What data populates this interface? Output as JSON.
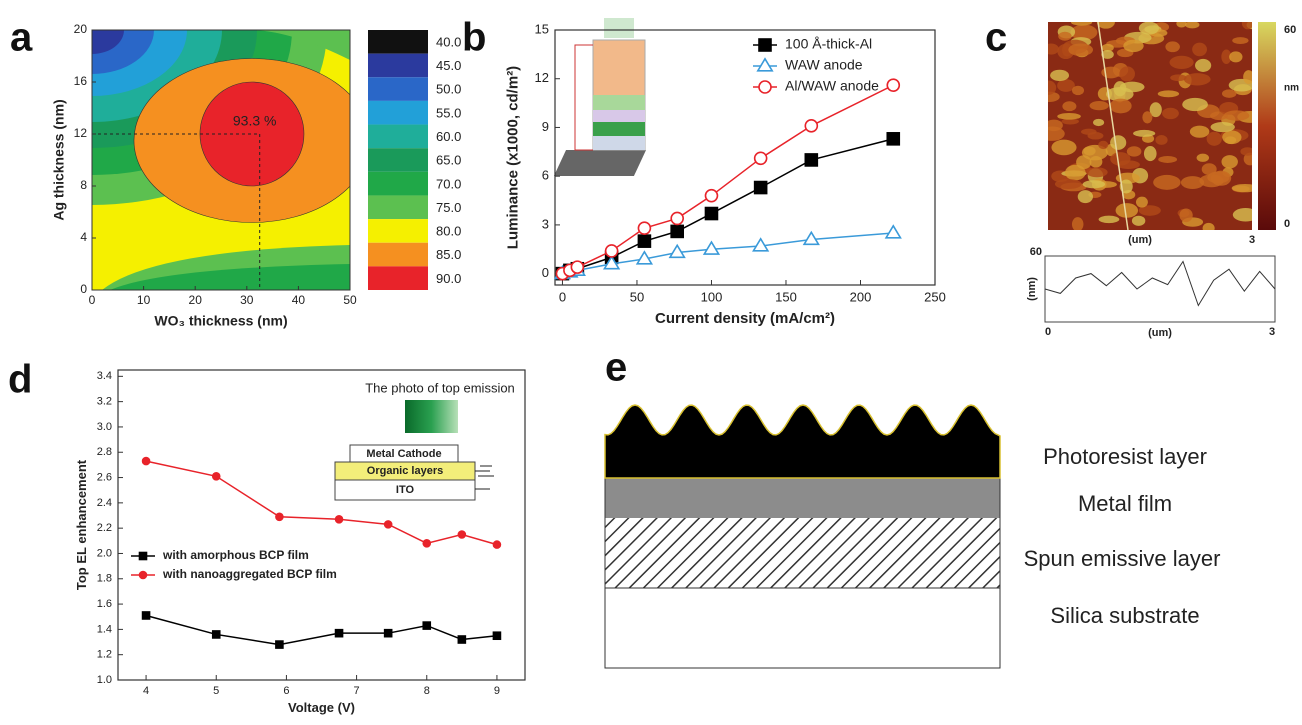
{
  "chart_data": [
    {
      "type": "contour",
      "label": "a",
      "x_label": "WO₃ thickness (nm)",
      "y_label": "Ag thickness (nm)",
      "xlim": [
        0,
        50
      ],
      "xticks": [
        0,
        10,
        20,
        30,
        40,
        50
      ],
      "ylim": [
        0,
        20
      ],
      "yticks": [
        0,
        4,
        8,
        12,
        16,
        20
      ],
      "annotation": "93.3 %",
      "peak_x": 32.5,
      "peak_y": 12,
      "colorbar": {
        "ticks": [
          {
            "value": 40,
            "label": "40.0"
          },
          {
            "value": 45,
            "label": "45.0"
          },
          {
            "value": 50,
            "label": "50.0"
          },
          {
            "value": 55,
            "label": "55.0"
          },
          {
            "value": 60,
            "label": "60.0"
          },
          {
            "value": 65,
            "label": "65.0"
          },
          {
            "value": 70,
            "label": "70.0"
          },
          {
            "value": 75,
            "label": "75.0"
          },
          {
            "value": 80,
            "label": "80.0"
          },
          {
            "value": 85,
            "label": "85.0"
          },
          {
            "value": 90,
            "label": "90.0"
          }
        ],
        "colors": [
          "#111111",
          "#2b3a9e",
          "#2a67c8",
          "#22a0d8",
          "#1fae9a",
          "#1a9a5a",
          "#20a848",
          "#5cc050",
          "#f5f000",
          "#f59020",
          "#e8232a"
        ]
      }
    },
    {
      "type": "line",
      "label": "b",
      "x_label": "Current density (mA/cm²)",
      "y_label": "Luminance (x1000, cd/m²)",
      "xlim": [
        -5,
        250
      ],
      "xticks": [
        0,
        50,
        100,
        150,
        200,
        250
      ],
      "ylim": [
        -0.7,
        15
      ],
      "yticks": [
        0,
        3,
        6,
        9,
        12,
        15
      ],
      "legend": "upper right",
      "x": [
        0,
        5,
        10,
        33,
        55,
        77,
        100,
        133,
        167,
        222
      ],
      "series": [
        {
          "name": "100 Å-thick-Al",
          "color": "#000000",
          "marker": "square",
          "filled": true,
          "values": [
            0,
            0.2,
            0.3,
            1.0,
            2.0,
            2.6,
            3.7,
            5.3,
            7.0,
            8.3
          ]
        },
        {
          "name": "WAW anode",
          "color": "#3a9ad9",
          "marker": "triangle",
          "filled": false,
          "values": [
            0,
            0.1,
            0.2,
            0.6,
            0.9,
            1.3,
            1.5,
            1.7,
            2.1,
            2.5
          ]
        },
        {
          "name": "Al/WAW anode",
          "color": "#e8232a",
          "marker": "circle",
          "filled": false,
          "values": [
            0,
            0.2,
            0.4,
            1.4,
            2.8,
            3.4,
            4.8,
            7.1,
            9.1,
            11.6
          ]
        }
      ]
    },
    {
      "type": "image",
      "label": "c",
      "x_label": "(um)",
      "xlim": [
        0,
        3
      ],
      "xticks": [
        3
      ],
      "colorbar": {
        "ticks": [
          0,
          60
        ],
        "unit": "nm"
      },
      "profile": {
        "x_label": "(um)",
        "y_label": "(nm)",
        "xlim": [
          0,
          3
        ],
        "xticks": [
          0,
          3
        ],
        "ylim": [
          0,
          60
        ],
        "yticks": [
          60
        ],
        "x": [
          0,
          0.2,
          0.4,
          0.6,
          0.8,
          1.0,
          1.2,
          1.4,
          1.6,
          1.8,
          2.0,
          2.2,
          2.4,
          2.6,
          2.8,
          3.0
        ],
        "values": [
          30,
          26,
          40,
          44,
          33,
          45,
          30,
          40,
          34,
          55,
          15,
          38,
          48,
          28,
          46,
          30
        ],
        "color": "#333333"
      }
    },
    {
      "type": "line",
      "label": "d",
      "x_label": "Voltage (V)",
      "y_label": "Top EL enhancement",
      "xlim": [
        3.6,
        9.4
      ],
      "xticks": [
        4,
        5,
        6,
        7,
        8,
        9
      ],
      "ylim": [
        1.0,
        3.45
      ],
      "yticks": [
        {
          "value": 1,
          "label": "1.0"
        },
        1.2,
        1.4,
        1.6,
        1.8,
        {
          "value": 2,
          "label": "2.0"
        },
        2.2,
        2.4,
        2.6,
        2.8,
        {
          "value": 3,
          "label": "3.0"
        },
        3.2,
        3.4
      ],
      "legend": "center left",
      "x": [
        4,
        5,
        5.9,
        6.75,
        7.45,
        8,
        8.5,
        9
      ],
      "series": [
        {
          "name": "with amorphous BCP film",
          "color": "#000000",
          "marker": "square",
          "filled": true,
          "values": [
            1.51,
            1.36,
            1.28,
            1.37,
            1.37,
            1.43,
            1.32,
            1.35
          ]
        },
        {
          "name": "with nanoaggregated BCP film",
          "color": "#e8232a",
          "marker": "circle",
          "filled": true,
          "values": [
            2.73,
            2.61,
            2.29,
            2.27,
            2.23,
            2.08,
            2.15,
            2.07
          ]
        }
      ],
      "inset": {
        "title": "The photo of top emission",
        "layers": [
          "Metal Cathode",
          "Organic layers",
          "ITO"
        ]
      }
    }
  ],
  "diagram": {
    "label": "e",
    "layers": [
      "Photoresist layer",
      "Metal film",
      "Spun emissive layer",
      "Silica substrate"
    ]
  }
}
